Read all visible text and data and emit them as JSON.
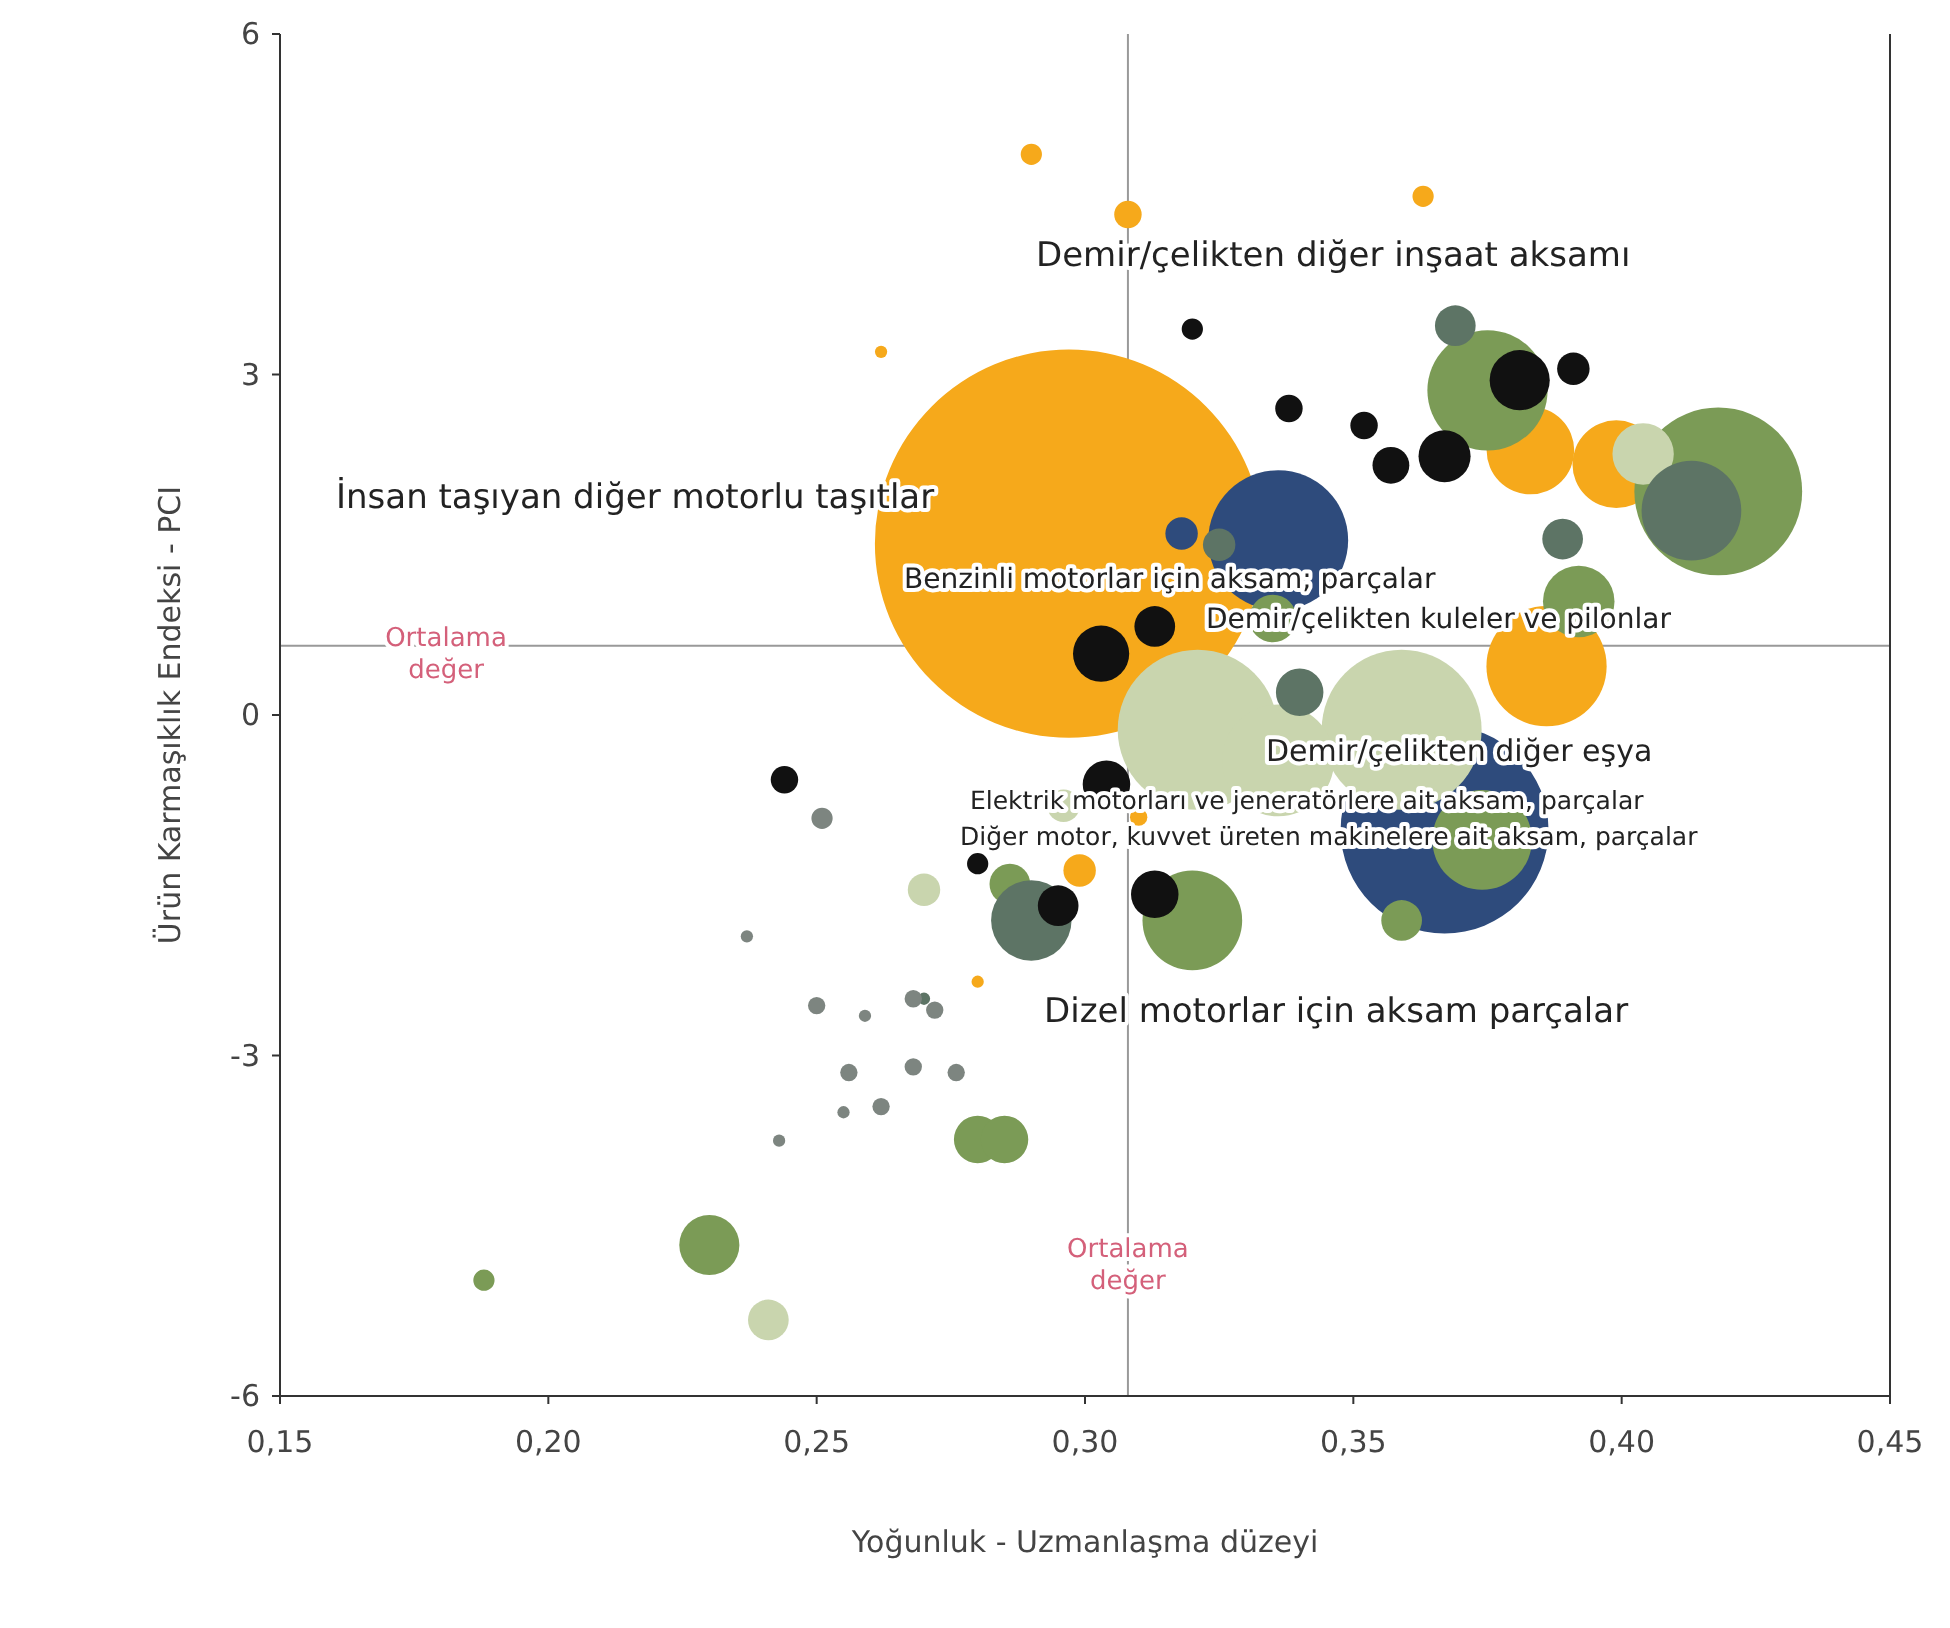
{
  "chart_data": {
    "type": "bubble",
    "xlabel": "Yoğunluk - Uzmanlaşma düzeyi",
    "ylabel": "Ürün Karmaşıklık Endeksi - PCI",
    "xlim": [
      0.15,
      0.45
    ],
    "xticks": [
      {
        "value": 0.15,
        "label": "0,15"
      },
      {
        "value": 0.2,
        "label": "0,20"
      },
      {
        "value": 0.25,
        "label": "0,25"
      },
      {
        "value": 0.3,
        "label": "0,30"
      },
      {
        "value": 0.35,
        "label": "0,35"
      },
      {
        "value": 0.4,
        "label": "0,40"
      },
      {
        "value": 0.45,
        "label": "0,45"
      }
    ],
    "ylim": [
      -6,
      6
    ],
    "yticks": [
      -6,
      -3,
      0,
      3,
      6
    ],
    "grid": false,
    "marker": "circle",
    "ref_lines": [
      {
        "axis": "x",
        "value": 0.308,
        "label": "Ortalama değer",
        "color": "#999999"
      },
      {
        "axis": "y",
        "value": 0.61,
        "label": "Ortalama değer",
        "color": "#999999"
      }
    ],
    "series": [
      {
        "color": "#f6a91b",
        "x": [
          0.297,
          0.29,
          0.308,
          0.363,
          0.383,
          0.399,
          0.386,
          0.299,
          0.28,
          0.262,
          0.31
        ],
        "values": [
          1.51,
          4.94,
          4.41,
          4.57,
          2.33,
          2.21,
          0.43,
          -1.37,
          -2.35,
          3.2,
          -0.9
        ],
        "sizes": [
          1,
          0.003,
          0.005,
          0.003,
          0.051,
          0.051,
          0.096,
          0.007,
          0.001,
          0.001,
          0.002
        ]
      },
      {
        "color": "#2e4b7c",
        "x": [
          0.367,
          0.336,
          0.318
        ],
        "values": [
          -1.01,
          1.54,
          1.6
        ],
        "sizes": [
          0.287,
          0.13,
          0.007
        ]
      },
      {
        "color": "#7b9b56",
        "x": [
          0.418,
          0.375,
          0.32,
          0.359,
          0.23,
          0.188,
          0.28,
          0.286,
          0.374,
          0.335,
          0.392,
          0.285
        ],
        "values": [
          1.97,
          2.86,
          -1.81,
          -1.81,
          -4.67,
          -4.98,
          -3.74,
          -1.49,
          -1.1,
          0.85,
          1.0,
          -3.74
        ],
        "sizes": [
          0.187,
          0.096,
          0.066,
          0.011,
          0.024,
          0.003,
          0.015,
          0.011,
          0.066,
          0.015,
          0.034,
          0.015
        ]
      },
      {
        "color": "#c9d5ae",
        "x": [
          0.321,
          0.359,
          0.336,
          0.241,
          0.27,
          0.404,
          0.296
        ],
        "values": [
          -0.13,
          -0.13,
          -0.4,
          -5.33,
          -1.54,
          2.3,
          -0.8
        ],
        "sizes": [
          0.17,
          0.17,
          0.083,
          0.011,
          0.007,
          0.025,
          0.007
        ]
      },
      {
        "color": "#5d7465",
        "x": [
          0.29,
          0.413,
          0.369,
          0.34,
          0.325,
          0.27,
          0.389
        ],
        "values": [
          -1.81,
          1.8,
          3.43,
          0.2,
          1.5,
          -2.5,
          1.55
        ],
        "sizes": [
          0.043,
          0.066,
          0.011,
          0.015,
          0.007,
          0.001,
          0.011
        ]
      },
      {
        "color": "#7d8580",
        "x": [
          0.251,
          0.25,
          0.256,
          0.262,
          0.243,
          0.268,
          0.272,
          0.268,
          0.237,
          0.259,
          0.276,
          0.255
        ],
        "values": [
          -0.91,
          -2.56,
          -3.15,
          -3.45,
          -3.75,
          -2.5,
          -2.6,
          -3.1,
          -1.95,
          -2.65,
          -3.15,
          -3.5
        ],
        "sizes": [
          0.003,
          0.002,
          0.002,
          0.002,
          0.001,
          0.002,
          0.002,
          0.002,
          0.001,
          0.001,
          0.002,
          0.001
        ]
      },
      {
        "color": "#111111",
        "x": [
          0.303,
          0.313,
          0.244,
          0.381,
          0.367,
          0.357,
          0.352,
          0.32,
          0.338,
          0.391,
          0.304,
          0.295,
          0.313,
          0.28
        ],
        "values": [
          0.54,
          0.78,
          -0.57,
          2.95,
          2.28,
          2.2,
          2.55,
          3.4,
          2.7,
          3.05,
          -0.61,
          -1.68,
          -1.58,
          -1.31
        ],
        "sizes": [
          0.021,
          0.011,
          0.005,
          0.024,
          0.018,
          0.009,
          0.005,
          0.003,
          0.005,
          0.007,
          0.015,
          0.011,
          0.015,
          0.003
        ]
      }
    ],
    "annotations": [
      "Demir/çelikten diğer inşaat aksamı",
      "İnsan taşıyan diğer motorlu taşıtlar",
      "Benzinli motorlar için aksam; parçalar",
      "Demir/çelikten kuleler ve pilonlar",
      "Demir/çelikten diğer eşya",
      "Elektrik motorları ve jeneratörlere ait aksam, parçalar",
      "Diğer motor, kuvvet üreten makinelere ait aksam, parçalar",
      "Dizel motorlar için aksam parçalar"
    ]
  }
}
